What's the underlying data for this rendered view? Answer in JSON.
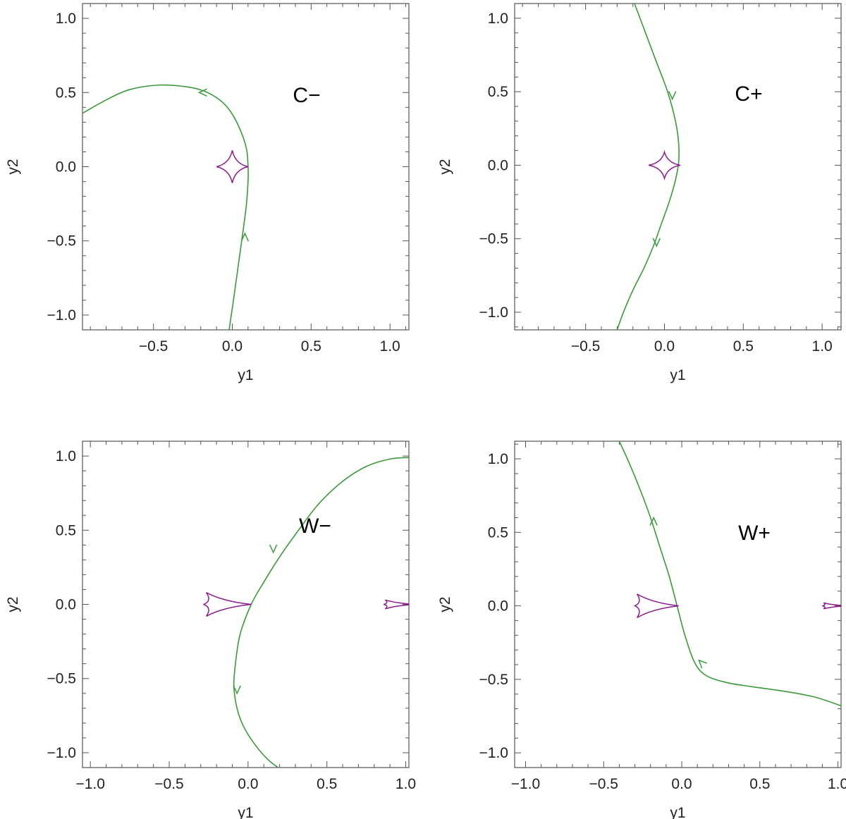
{
  "colors": {
    "trajectory": "#3a9a3a",
    "caustic": "#8e1c8e",
    "frame": "#555555",
    "ticks": "#222222"
  },
  "chart_data": [
    {
      "type": "line",
      "label": "C−",
      "xlabel": "y1",
      "ylabel": "y2",
      "xlim": [
        -0.95,
        1.12
      ],
      "ylim": [
        -1.1,
        1.1
      ],
      "xticks": [
        -0.5,
        0.0,
        0.5,
        1.0
      ],
      "xtick_labels": [
        "−0.5",
        "0.0",
        "0.5",
        "1.0"
      ],
      "yticks": [
        -1.0,
        -0.5,
        0.0,
        0.5,
        1.0
      ],
      "ytick_labels": [
        "−1.0",
        "−0.5",
        "0.0",
        "0.5",
        "1.0"
      ],
      "series": [
        {
          "kind": "source-trajectory",
          "x": [
            -0.02,
            0.01,
            0.04,
            0.07,
            0.09,
            0.1,
            0.1,
            0.09,
            0.05,
            -0.01,
            -0.08,
            -0.18,
            -0.3,
            -0.47,
            -0.65,
            -0.8,
            -0.95
          ],
          "y": [
            -1.1,
            -0.88,
            -0.65,
            -0.42,
            -0.25,
            -0.1,
            0.0,
            0.12,
            0.25,
            0.37,
            0.45,
            0.51,
            0.54,
            0.55,
            0.52,
            0.45,
            0.36
          ],
          "arrows": [
            {
              "x": 0.08,
              "y": -0.45,
              "direction": "up"
            },
            {
              "x": -0.21,
              "y": 0.5,
              "direction": "left"
            }
          ]
        },
        {
          "kind": "caustic",
          "shape": "astroid",
          "center": [
            0.0,
            0.0
          ],
          "half_width": [
            0.1,
            0.11
          ]
        }
      ]
    },
    {
      "type": "line",
      "label": "C+",
      "xlabel": "y1",
      "ylabel": "y2",
      "xlim": [
        -0.95,
        1.12
      ],
      "ylim": [
        -1.12,
        1.1
      ],
      "xticks": [
        -0.5,
        0.0,
        0.5,
        1.0
      ],
      "xtick_labels": [
        "−0.5",
        "0.0",
        "0.5",
        "1.0"
      ],
      "yticks": [
        -1.0,
        -0.5,
        0.0,
        0.5,
        1.0
      ],
      "ytick_labels": [
        "−1.0",
        "−0.5",
        "0.0",
        "0.5",
        "1.0"
      ],
      "series": [
        {
          "kind": "source-trajectory",
          "x": [
            -0.19,
            -0.12,
            -0.05,
            0.02,
            0.07,
            0.09,
            0.09,
            0.07,
            0.03,
            -0.02,
            -0.07,
            -0.13,
            -0.2,
            -0.26,
            -0.3
          ],
          "y": [
            1.1,
            0.9,
            0.7,
            0.5,
            0.3,
            0.15,
            0.02,
            -0.1,
            -0.25,
            -0.4,
            -0.55,
            -0.7,
            -0.85,
            -1.0,
            -1.12
          ],
          "arrows": [
            {
              "x": 0.05,
              "y": 0.45,
              "direction": "down"
            },
            {
              "x": -0.05,
              "y": -0.55,
              "direction": "down"
            }
          ]
        },
        {
          "kind": "caustic",
          "shape": "astroid",
          "center": [
            0.0,
            0.0
          ],
          "half_width": [
            0.1,
            0.09
          ]
        }
      ]
    },
    {
      "type": "line",
      "label": "W−",
      "xlabel": "y1",
      "ylabel": "y2",
      "xlim": [
        -1.05,
        1.02
      ],
      "ylim": [
        -1.1,
        1.1
      ],
      "xticks": [
        -1.0,
        -0.5,
        0.0,
        0.5,
        1.0
      ],
      "xtick_labels": [
        "−1.0",
        "−0.5",
        "0.0",
        "0.5",
        "1.0"
      ],
      "yticks": [
        -1.0,
        -0.5,
        0.0,
        0.5,
        1.0
      ],
      "ytick_labels": [
        "−1.0",
        "−0.5",
        "0.0",
        "0.5",
        "1.0"
      ],
      "series": [
        {
          "kind": "source-trajectory",
          "x": [
            1.02,
            0.9,
            0.75,
            0.6,
            0.45,
            0.32,
            0.2,
            0.1,
            0.02,
            -0.05,
            -0.08,
            -0.09,
            -0.07,
            -0.03,
            0.04,
            0.12,
            0.19
          ],
          "y": [
            0.99,
            0.98,
            0.93,
            0.83,
            0.68,
            0.5,
            0.32,
            0.15,
            0.0,
            -0.2,
            -0.4,
            -0.55,
            -0.7,
            -0.82,
            -0.94,
            -1.04,
            -1.1
          ],
          "arrows": [
            {
              "x": 0.16,
              "y": 0.35,
              "direction": "down"
            },
            {
              "x": -0.07,
              "y": -0.6,
              "direction": "down"
            }
          ]
        },
        {
          "kind": "caustic",
          "shape": "wide-resonant",
          "center": [
            -0.13,
            0.0
          ],
          "half_width": [
            0.15,
            0.08
          ]
        },
        {
          "kind": "caustic",
          "shape": "wide-resonant",
          "center": [
            0.96,
            0.0
          ],
          "half_width": [
            0.1,
            0.03
          ]
        }
      ]
    },
    {
      "type": "line",
      "label": "W+",
      "xlabel": "y1",
      "ylabel": "y2",
      "xlim": [
        -1.07,
        1.02
      ],
      "ylim": [
        -1.1,
        1.12
      ],
      "xticks": [
        -1.0,
        -0.5,
        0.0,
        0.5,
        1.0
      ],
      "xtick_labels": [
        "−1.0",
        "−0.5",
        "0.0",
        "0.5",
        "1.0"
      ],
      "yticks": [
        -1.0,
        -0.5,
        0.0,
        0.5,
        1.0
      ],
      "ytick_labels": [
        "−1.0",
        "−0.5",
        "0.0",
        "0.5",
        "1.0"
      ],
      "series": [
        {
          "kind": "source-trajectory",
          "x": [
            1.02,
            0.85,
            0.65,
            0.45,
            0.28,
            0.15,
            0.08,
            0.02,
            -0.03,
            -0.08,
            -0.14,
            -0.2,
            -0.27,
            -0.34,
            -0.4
          ],
          "y": [
            -0.68,
            -0.62,
            -0.58,
            -0.55,
            -0.52,
            -0.47,
            -0.38,
            -0.2,
            0.0,
            0.2,
            0.4,
            0.6,
            0.8,
            0.98,
            1.12
          ],
          "arrows": [
            {
              "x": 0.11,
              "y": -0.37,
              "direction": "up-left"
            },
            {
              "x": -0.18,
              "y": 0.6,
              "direction": "up"
            }
          ]
        },
        {
          "kind": "caustic",
          "shape": "wide-resonant",
          "center": [
            -0.16,
            0.0
          ],
          "half_width": [
            0.14,
            0.08
          ]
        },
        {
          "kind": "caustic",
          "shape": "wide-resonant",
          "center": [
            0.98,
            0.0
          ],
          "half_width": [
            0.08,
            0.02
          ]
        }
      ]
    }
  ]
}
